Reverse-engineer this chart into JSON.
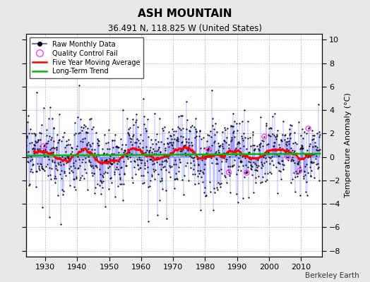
{
  "title": "ASH MOUNTAIN",
  "subtitle": "36.491 N, 118.825 W (United States)",
  "credit": "Berkeley Earth",
  "ylabel": "Temperature Anomaly (°C)",
  "xlim": [
    1924.0,
    2016.5
  ],
  "ylim": [
    -8.5,
    10.5
  ],
  "yticks": [
    -8,
    -6,
    -4,
    -2,
    0,
    2,
    4,
    6,
    8,
    10
  ],
  "xticks": [
    1930,
    1940,
    1950,
    1960,
    1970,
    1980,
    1990,
    2000,
    2010
  ],
  "start_year": 1924,
  "end_year": 2016,
  "background_color": "#e8e8e8",
  "plot_bg_color": "#ffffff",
  "raw_line_color": "#4444ff",
  "raw_marker_color": "#000000",
  "moving_avg_color": "#ff0000",
  "trend_color": "#00bb00",
  "qc_fail_color": "#ff44ff",
  "seed": 17
}
